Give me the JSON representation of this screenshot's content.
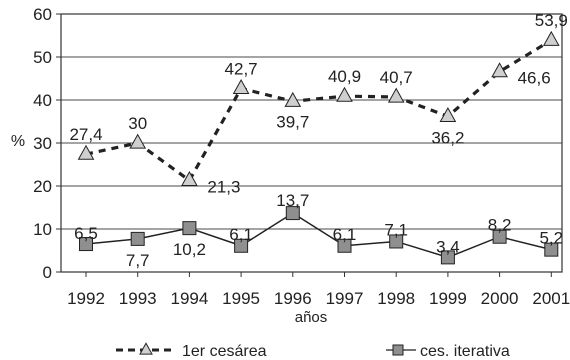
{
  "chart_data": {
    "type": "line",
    "x": [
      "1992",
      "1993",
      "1994",
      "1995",
      "1996",
      "1997",
      "1998",
      "1999",
      "2000",
      "2001"
    ],
    "ylabel": "%",
    "xlabel": "años",
    "ylim": [
      0,
      60
    ],
    "yticks": [
      "0",
      "10",
      "20",
      "30",
      "40",
      "50",
      "60"
    ],
    "grid": "horizontal",
    "legend_position": "bottom",
    "series": [
      {
        "name": "1er cesárea",
        "values": [
          27.4,
          30,
          21.3,
          42.7,
          39.7,
          40.9,
          40.7,
          36.2,
          46.6,
          53.9
        ],
        "labels": [
          "27,4",
          "30",
          "21,3",
          "42,7",
          "39,7",
          "40,9",
          "40,7",
          "36,2",
          "46,6",
          "53,9"
        ],
        "style": "dashed",
        "marker": "triangle",
        "color": "#222222",
        "marker_color": "#cfcfcf"
      },
      {
        "name": "ces. iterativa",
        "values": [
          6.5,
          7.7,
          10.2,
          6.1,
          13.7,
          6.1,
          7.1,
          3.4,
          8.2,
          5.2
        ],
        "labels": [
          "6,5",
          "7,7",
          "10,2",
          "6,1",
          "13,7",
          "6,1",
          "7,1",
          "3,4",
          "8,2",
          "5,2"
        ],
        "style": "solid",
        "marker": "square",
        "color": "#222222",
        "marker_color": "#8f8f8f"
      }
    ]
  }
}
